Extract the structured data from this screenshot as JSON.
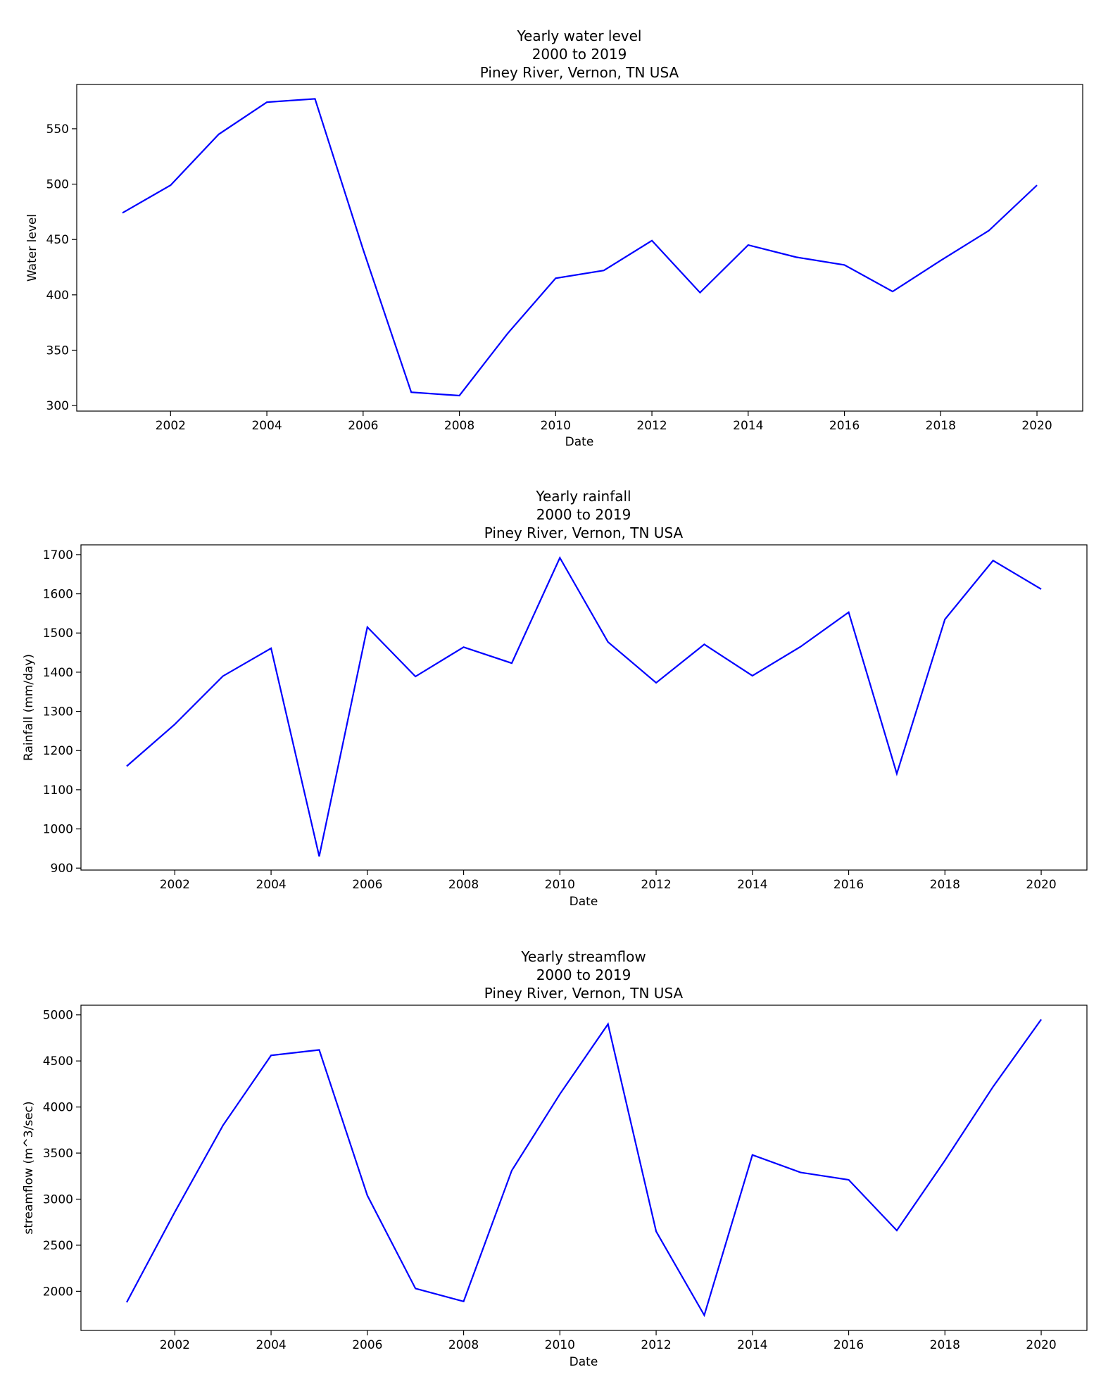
{
  "chart_data": [
    {
      "type": "line",
      "title": "Yearly water level",
      "subtitle": [
        "2000 to 2019",
        "Piney River, Vernon, TN USA"
      ],
      "xlabel": "Date",
      "ylabel": "Water level",
      "x_ticks": [
        2002,
        2004,
        2006,
        2008,
        2010,
        2012,
        2014,
        2016,
        2018,
        2020
      ],
      "y_ticks": [
        300,
        350,
        400,
        450,
        500,
        550
      ],
      "xlim": [
        2000.05,
        2020.95
      ],
      "ylim": [
        295,
        590
      ],
      "grid": false,
      "series": [
        {
          "color": "#0000ff",
          "x": [
            2001,
            2002,
            2003,
            2004,
            2005,
            2006,
            2007,
            2008,
            2009,
            2010,
            2011,
            2012,
            2013,
            2014,
            2015,
            2016,
            2017,
            2018,
            2019,
            2020
          ],
          "values": [
            474,
            499,
            545,
            574,
            577,
            441,
            312,
            309,
            365,
            415,
            422,
            449,
            402,
            445,
            434,
            427,
            403,
            431,
            458,
            499
          ]
        }
      ]
    },
    {
      "type": "line",
      "title": "Yearly rainfall",
      "subtitle": [
        "2000 to 2019",
        "Piney River, Vernon, TN USA"
      ],
      "xlabel": "Date",
      "ylabel": "Rainfall (mm/day)",
      "x_ticks": [
        2002,
        2004,
        2006,
        2008,
        2010,
        2012,
        2014,
        2016,
        2018,
        2020
      ],
      "y_ticks": [
        900,
        1000,
        1100,
        1200,
        1300,
        1400,
        1500,
        1600,
        1700
      ],
      "xlim": [
        2000.05,
        2020.95
      ],
      "ylim": [
        895,
        1725
      ],
      "grid": false,
      "series": [
        {
          "color": "#0000ff",
          "x": [
            2001,
            2002,
            2003,
            2004,
            2005,
            2006,
            2007,
            2008,
            2009,
            2010,
            2011,
            2012,
            2013,
            2014,
            2015,
            2016,
            2017,
            2018,
            2019,
            2020
          ],
          "values": [
            1160,
            1267,
            1390,
            1461,
            930,
            1515,
            1389,
            1464,
            1423,
            1692,
            1477,
            1373,
            1471,
            1391,
            1465,
            1553,
            1141,
            1535,
            1685,
            1612
          ]
        }
      ]
    },
    {
      "type": "line",
      "title": "Yearly streamflow",
      "subtitle": [
        "2000 to 2019",
        "Piney River, Vernon, TN USA"
      ],
      "xlabel": "Date",
      "ylabel": "streamflow (m^3/sec)",
      "x_ticks": [
        2002,
        2004,
        2006,
        2008,
        2010,
        2012,
        2014,
        2016,
        2018,
        2020
      ],
      "y_ticks": [
        2000,
        2500,
        3000,
        3500,
        4000,
        4500,
        5000
      ],
      "xlim": [
        2000.05,
        2020.95
      ],
      "ylim": [
        1575,
        5105
      ],
      "grid": false,
      "series": [
        {
          "color": "#0000ff",
          "x": [
            2001,
            2002,
            2003,
            2004,
            2005,
            2006,
            2007,
            2008,
            2009,
            2010,
            2011,
            2012,
            2013,
            2014,
            2015,
            2016,
            2017,
            2018,
            2019,
            2020
          ],
          "values": [
            1880,
            2860,
            3800,
            4560,
            4620,
            3040,
            2030,
            1890,
            3310,
            4140,
            4900,
            2650,
            1740,
            3480,
            3290,
            3210,
            2660,
            3420,
            4220,
            4950
          ]
        }
      ]
    }
  ]
}
